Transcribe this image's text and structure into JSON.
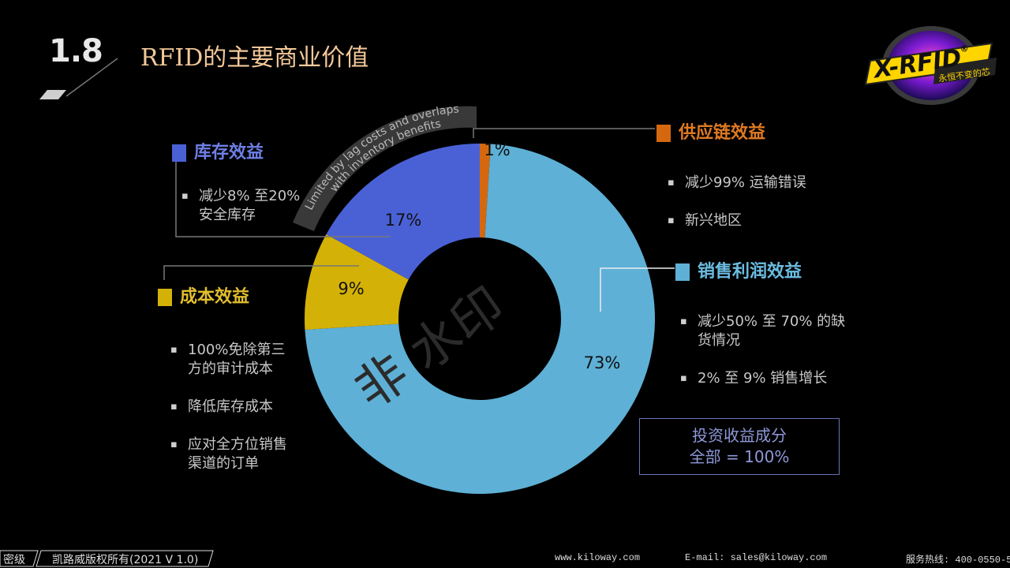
{
  "header": {
    "section_number": "1.8",
    "title": "RFID的主要商业价值"
  },
  "logo": {
    "brand": "X-RFID",
    "registered": "®",
    "slogan": "永恒不变的芯"
  },
  "watermark": "非  水印",
  "banner_text": [
    "Limited by lag costs and overlaps",
    "with inventory benefits"
  ],
  "legend": {
    "inventory": {
      "title": "库存效益",
      "color": "#4a61d6",
      "bullets": [
        "减少8% 至20%\n安全库存"
      ]
    },
    "cost": {
      "title": "成本效益",
      "color": "#d4b106",
      "bullets": [
        "100%免除第三\n方的审计成本",
        "降低库存成本",
        "应对全方位销售\n渠道的订单"
      ]
    },
    "supply": {
      "title": "供应链效益",
      "color": "#d5680f",
      "bullets": [
        "减少99% 运输错误",
        "新兴地区"
      ]
    },
    "sales": {
      "title": "销售利润效益",
      "color": "#5eb0d6",
      "bullets": [
        "减少50% 至 70% 的缺\n货情况",
        "2% 至 9% 销售增长"
      ]
    }
  },
  "note": {
    "line1": "投资收益成分",
    "line2": "全部 = 100%"
  },
  "footer": {
    "classification": "密级",
    "copyright": "凯路威版权所有(2021 V 1.0)",
    "website": "www.kiloway.com",
    "email": "E-mail: sales@kiloway.com",
    "hotline": "服务热线: 400-0550-5"
  },
  "chart_data": {
    "type": "pie",
    "variant": "donut",
    "categories": [
      "供应链效益",
      "销售利润效益",
      "成本效益",
      "库存效益"
    ],
    "values": [
      1,
      73,
      9,
      17
    ],
    "labels": [
      "1%",
      "73%",
      "9%",
      "17%"
    ],
    "colors": [
      "#d5680f",
      "#5eb0d6",
      "#d4b106",
      "#4a61d6"
    ]
  }
}
